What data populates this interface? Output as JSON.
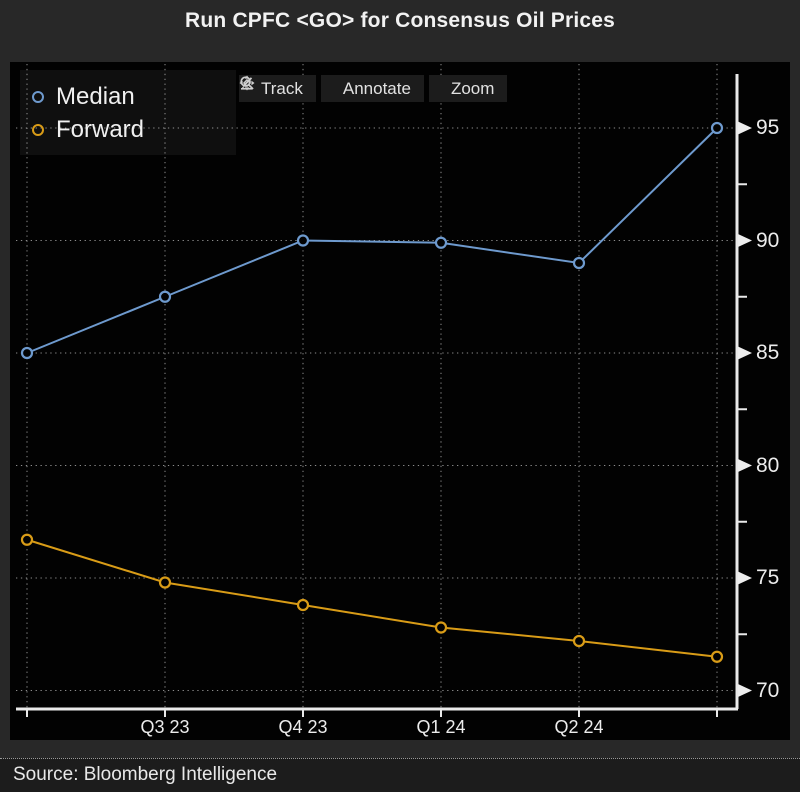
{
  "title": "Run CPFC <GO> for Consensus Oil Prices",
  "toolbar": {
    "track": "Track",
    "annotate": "Annotate",
    "zoom": "Zoom"
  },
  "legend": [
    {
      "label": "Median",
      "color": "#6e9ace"
    },
    {
      "label": "Forward",
      "color": "#d99c17"
    }
  ],
  "source": "Source: Bloomberg Intelligence",
  "colors": {
    "background": "#282828",
    "plot_background": "#020202",
    "axis": "#e9e9e9",
    "gridline": "#8c8c8c",
    "median_blue": "#6e9ace",
    "forward_gold": "#d99c17"
  },
  "chart_data": {
    "type": "line",
    "categories": [
      "",
      "Q3 23",
      "Q4 23",
      "Q1 24",
      "Q2 24",
      ""
    ],
    "series": [
      {
        "name": "Median",
        "color": "#6e9ace",
        "values": [
          85.0,
          87.5,
          90.0,
          89.9,
          89.0,
          95.0
        ]
      },
      {
        "name": "Forward",
        "color": "#d99c17",
        "values": [
          76.7,
          74.8,
          73.8,
          72.8,
          72.2,
          71.5
        ]
      }
    ],
    "title": "",
    "xlabel": "",
    "ylabel": "",
    "y_axis": {
      "side": "right",
      "major_ticks": [
        95,
        90,
        85,
        80,
        75,
        70
      ],
      "minor_ticks": [
        92.5,
        87.5,
        82.5,
        77.5,
        72.5
      ],
      "ylim": [
        69.2,
        97.4
      ]
    },
    "grid": "dotted-both",
    "legend_position": "top-left",
    "marker": "open-circle"
  }
}
